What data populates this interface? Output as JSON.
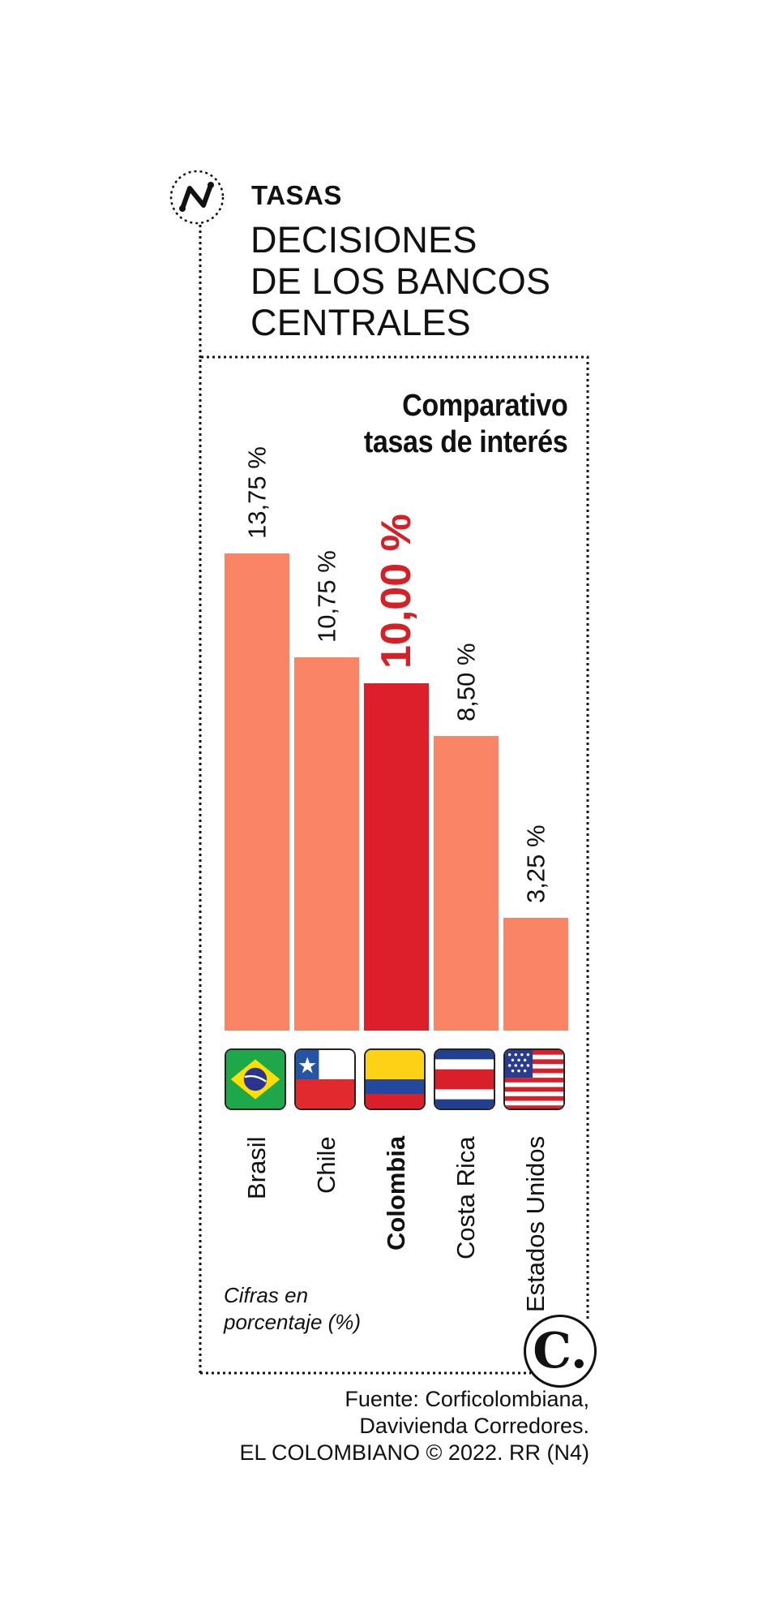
{
  "header": {
    "kicker": "TASAS",
    "headline_lines": [
      "DECISIONES",
      "DE LOS BANCOS",
      "CENTRALES"
    ]
  },
  "chart_data": {
    "type": "bar",
    "title_lines": [
      "Comparativo",
      "tasas de interés"
    ],
    "categories": [
      "Brasil",
      "Chile",
      "Colombia",
      "Costa Rica",
      "Estados Unidos"
    ],
    "values": [
      13.75,
      10.75,
      10.0,
      8.5,
      3.25
    ],
    "value_labels": [
      "13,75 %",
      "10,75 %",
      "10,00 %",
      "8,50 %",
      "3,25 %"
    ],
    "highlight_index": 2,
    "ylim": [
      0,
      13.75
    ],
    "grid": false,
    "legend": "none",
    "colors": {
      "bar": "#f98466",
      "highlight_bar": "#dc1f2a",
      "highlight_text": "#d42027"
    },
    "flags": [
      "brazil-flag-icon",
      "chile-flag-icon",
      "colombia-flag-icon",
      "costa-rica-flag-icon",
      "usa-flag-icon"
    ]
  },
  "note_lines": [
    "Cifras en",
    "porcentaje (%)"
  ],
  "brand": {
    "badge_letter": "C."
  },
  "source_lines": [
    "Fuente: Corficolombiana,",
    "Davivienda Corredores.",
    "EL COLOMBIANO © 2022. RR (N4)"
  ]
}
